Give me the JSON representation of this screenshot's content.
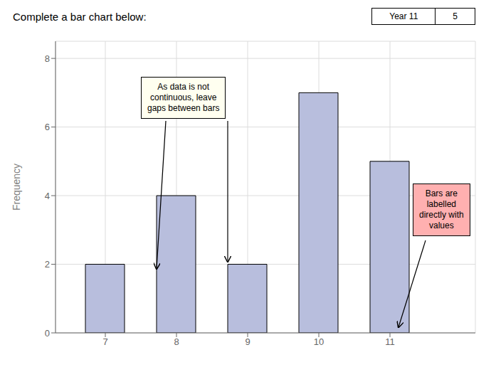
{
  "chart_data": {
    "type": "bar",
    "title": "Complete a bar chart below:",
    "x": [
      7,
      8,
      9,
      10,
      11
    ],
    "values": [
      2,
      4,
      2,
      7,
      5
    ],
    "color": "#b8bedd",
    "ylabel": "Frequency",
    "xlim": [
      6.3,
      12.2
    ],
    "xticks": [
      7,
      8,
      9,
      10,
      11
    ],
    "ylim": [
      0,
      8.5
    ],
    "yticks": [
      0,
      2,
      4,
      6,
      8
    ],
    "grid": true,
    "annotations": [
      "As data is not\ncontinuous, leave\ngaps between bars",
      "Bars are\nlabelled\ndirectly with\nvalues",
      "Year 11",
      "5"
    ]
  }
}
